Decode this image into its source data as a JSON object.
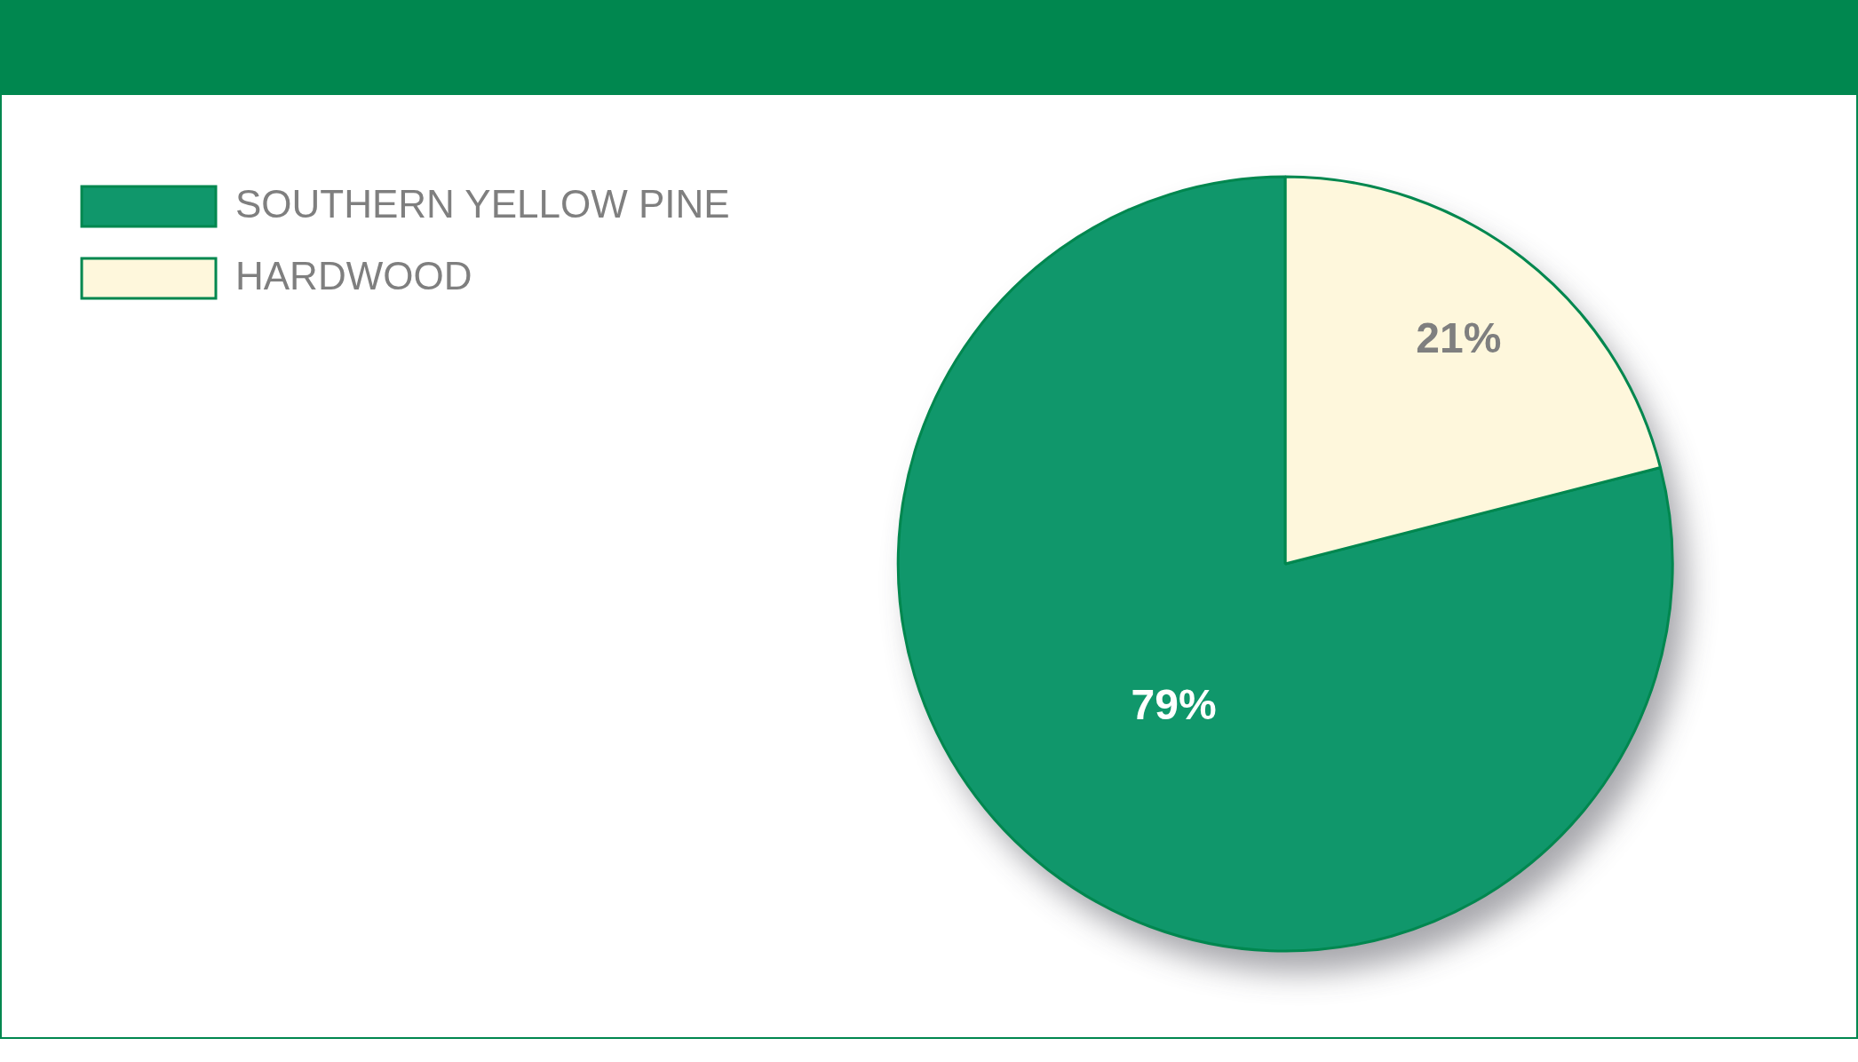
{
  "chart_data": {
    "type": "pie",
    "categories": [
      "SOUTHERN YELLOW PINE",
      "HARDWOOD"
    ],
    "values": [
      79,
      21
    ],
    "colors": [
      "#10976b",
      "#fef7dc"
    ],
    "value_labels": [
      "79%",
      "21%"
    ],
    "legend": "top left"
  }
}
